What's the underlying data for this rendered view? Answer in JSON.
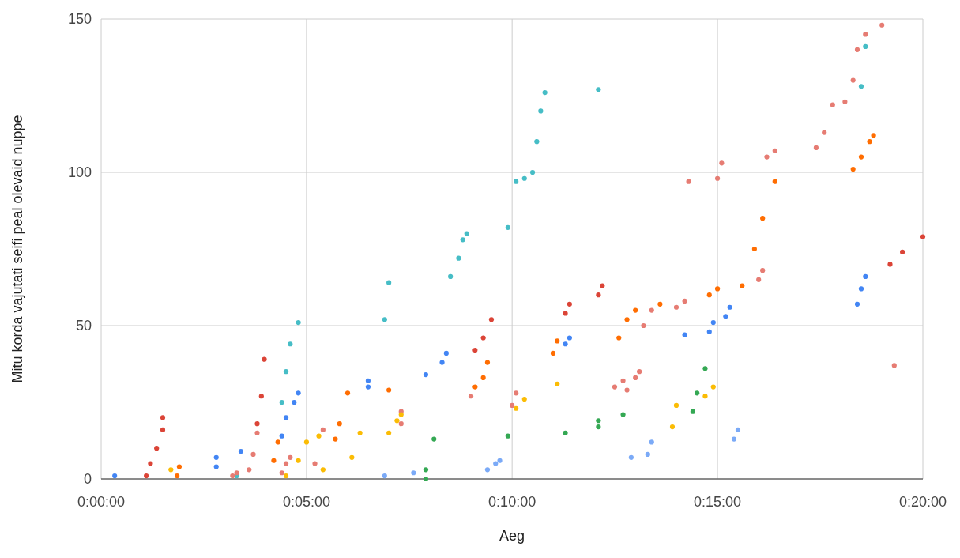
{
  "chart_data": {
    "type": "scatter",
    "xlabel": "Aeg",
    "ylabel": "Mitu korda vajutati seifi peal olevaid nuppe",
    "xlim": [
      0,
      0.3333
    ],
    "ylim": [
      0,
      150
    ],
    "xticks": [
      {
        "value": 0,
        "label": "0:00:00"
      },
      {
        "value": 0.0833,
        "label": "0:05:00"
      },
      {
        "value": 0.1667,
        "label": "0:10:00"
      },
      {
        "value": 0.25,
        "label": "0:15:00"
      },
      {
        "value": 0.3333,
        "label": "0:20:00"
      }
    ],
    "yticks": [
      0,
      50,
      100,
      150
    ],
    "grid": true,
    "marker": "circle",
    "series": [
      {
        "color": "#db4437",
        "x": [
          0.0183,
          0.02,
          0.0225,
          0.025,
          0.025,
          0.0633,
          0.065,
          0.0662,
          0.1517,
          0.155,
          0.1583,
          0.1883,
          0.19,
          0.2017,
          0.2033,
          0.32,
          0.325,
          0.3333
        ],
        "values": [
          1,
          5,
          10,
          16,
          20,
          18,
          27,
          39,
          42,
          46,
          52,
          54,
          57,
          60,
          63,
          70,
          74,
          79
        ]
      },
      {
        "color": "#ff6d01",
        "x": [
          0.0308,
          0.0317,
          0.07,
          0.0717,
          0.095,
          0.0967,
          0.1,
          0.1167,
          0.1517,
          0.155,
          0.1567,
          0.1833,
          0.185,
          0.21,
          0.2133,
          0.2167,
          0.2267,
          0.2467,
          0.25,
          0.26,
          0.265,
          0.2683,
          0.2733,
          0.305,
          0.3083,
          0.3117,
          0.3133
        ],
        "values": [
          1,
          4,
          6,
          12,
          13,
          18,
          28,
          29,
          30,
          33,
          38,
          41,
          45,
          46,
          52,
          55,
          57,
          60,
          62,
          63,
          75,
          85,
          97,
          101,
          105,
          110,
          112
        ]
      },
      {
        "color": "#4285f4",
        "x": [
          0.0055,
          0.0467,
          0.0467,
          0.0567,
          0.0733,
          0.075,
          0.0783,
          0.08,
          0.1083,
          0.1083,
          0.1317,
          0.1383,
          0.14,
          0.1883,
          0.19,
          0.2367,
          0.2467,
          0.2483,
          0.2533,
          0.255,
          0.3067,
          0.3083,
          0.31
        ],
        "values": [
          1,
          4,
          7,
          9,
          14,
          20,
          25,
          28,
          30,
          32,
          34,
          38,
          41,
          44,
          46,
          47,
          48,
          51,
          53,
          56,
          57,
          62,
          66
        ]
      },
      {
        "color": "#46bdc6",
        "x": [
          0.055,
          0.0733,
          0.075,
          0.0767,
          0.08,
          0.115,
          0.1167,
          0.1417,
          0.145,
          0.1467,
          0.1483,
          0.165,
          0.1683,
          0.1717,
          0.175,
          0.1767,
          0.1783,
          0.18,
          0.2017,
          0.3083,
          0.31
        ],
        "values": [
          1,
          25,
          35,
          44,
          51,
          52,
          64,
          66,
          72,
          78,
          80,
          82,
          97,
          98,
          100,
          110,
          120,
          126,
          127,
          128,
          141
        ]
      },
      {
        "color": "#e67c73",
        "x": [
          0.0533,
          0.055,
          0.06,
          0.0617,
          0.0633,
          0.0733,
          0.075,
          0.0767,
          0.0867,
          0.09,
          0.1217,
          0.1217,
          0.15,
          0.1667,
          0.1683,
          0.2083,
          0.2117,
          0.2133,
          0.2167,
          0.2183,
          0.22,
          0.2233,
          0.2333,
          0.2367,
          0.2383,
          0.25,
          0.2517,
          0.2667,
          0.2683,
          0.27,
          0.2733,
          0.29,
          0.2933,
          0.2967,
          0.3017,
          0.305,
          0.3067,
          0.31,
          0.3167,
          0.3217
        ],
        "values": [
          1,
          2,
          3,
          8,
          15,
          2,
          5,
          7,
          5,
          16,
          18,
          22,
          27,
          24,
          28,
          30,
          32,
          29,
          33,
          35,
          50,
          55,
          56,
          58,
          97,
          98,
          103,
          65,
          68,
          105,
          107,
          108,
          113,
          122,
          123,
          130,
          140,
          145,
          148,
          37
        ]
      },
      {
        "color": "#fbbc04",
        "x": [
          0.0283,
          0.075,
          0.08,
          0.0833,
          0.0883,
          0.09,
          0.1017,
          0.105,
          0.1167,
          0.12,
          0.1217,
          0.1683,
          0.1717,
          0.185,
          0.2317,
          0.2333,
          0.245,
          0.2483
        ],
        "values": [
          3,
          1,
          6,
          12,
          14,
          3,
          7,
          15,
          15,
          19,
          21,
          23,
          26,
          31,
          17,
          24,
          27,
          30
        ]
      },
      {
        "color": "#34a853",
        "x": [
          0.1317,
          0.1317,
          0.135,
          0.165,
          0.1883,
          0.2017,
          0.2017,
          0.2117,
          0.24,
          0.2417,
          0.245
        ],
        "values": [
          0,
          3,
          13,
          14,
          15,
          17,
          19,
          21,
          22,
          28,
          36
        ]
      },
      {
        "color": "#7baaf7",
        "x": [
          0.115,
          0.1267,
          0.1567,
          0.16,
          0.1617,
          0.215,
          0.2217,
          0.2233,
          0.2567,
          0.2583
        ],
        "values": [
          1,
          2,
          3,
          5,
          6,
          7,
          8,
          12,
          13,
          16
        ]
      }
    ]
  }
}
